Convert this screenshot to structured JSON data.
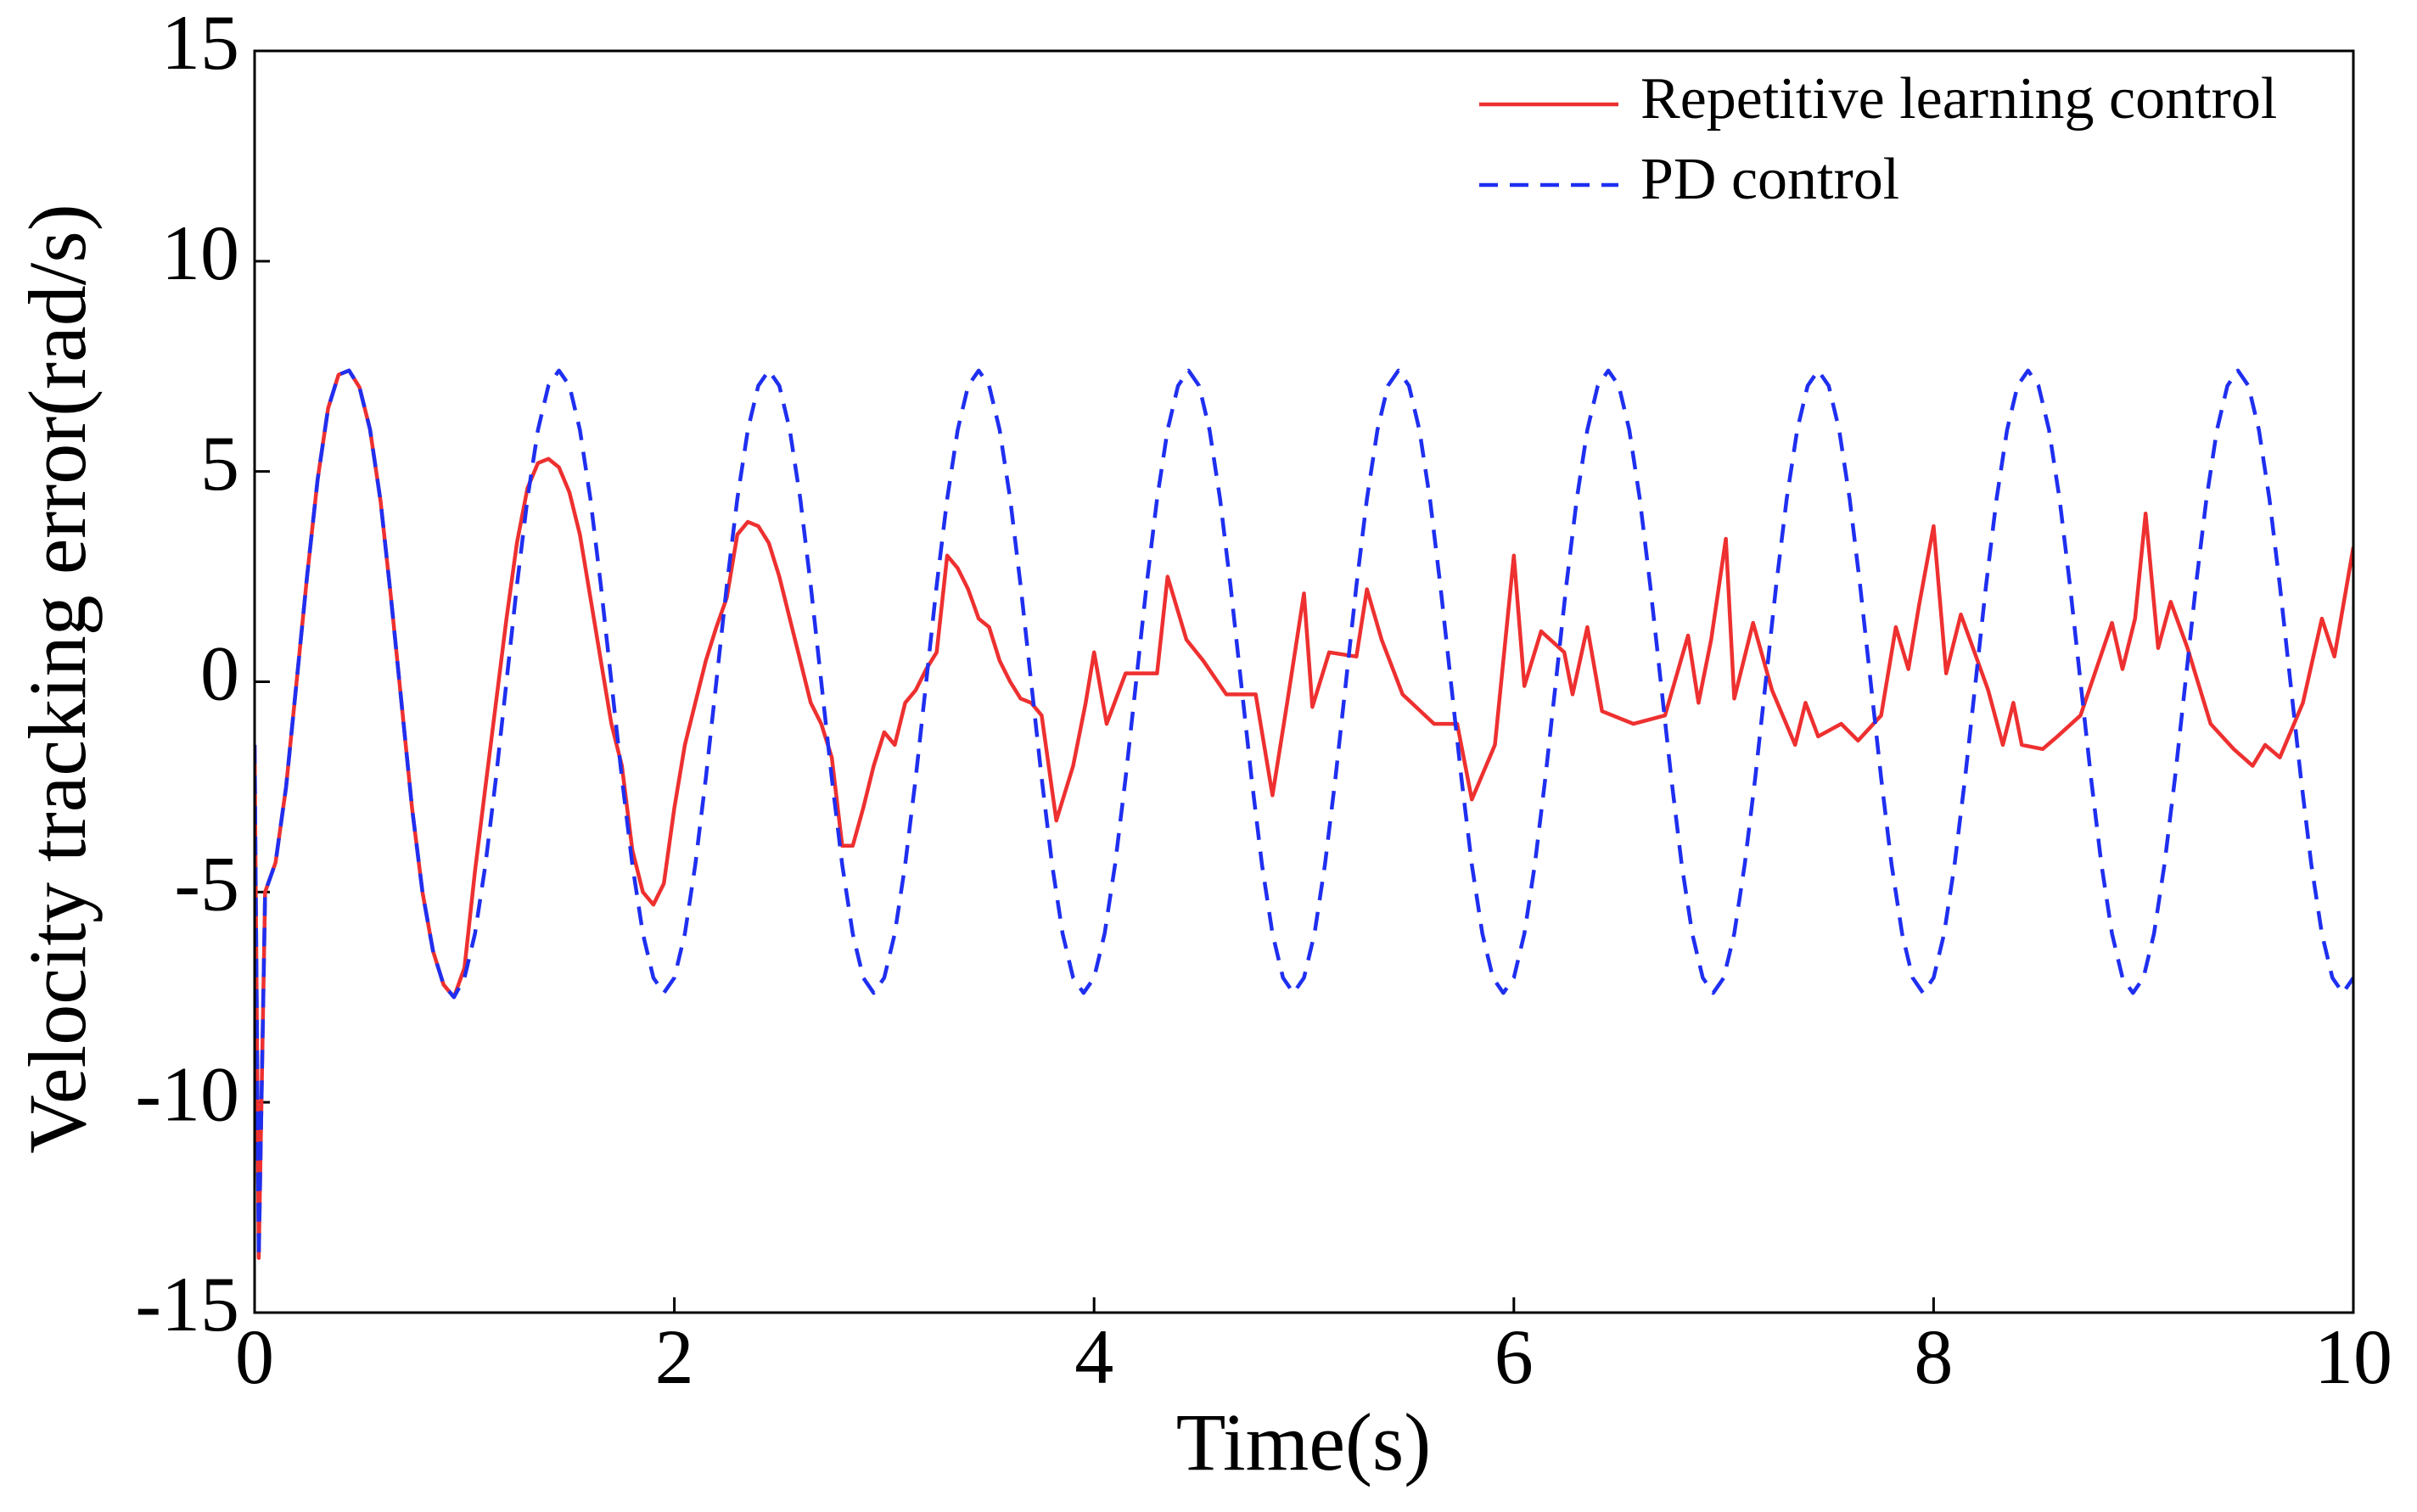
{
  "chart_data": {
    "type": "line",
    "xlabel": "Time(s)",
    "ylabel": "Velocity tracking error(rad/s)",
    "xlim": [
      0,
      10
    ],
    "xticks": [
      0,
      2,
      4,
      6,
      8,
      10
    ],
    "ylim": [
      -15,
      15
    ],
    "yticks": [
      -15,
      -10,
      -5,
      0,
      5,
      10,
      15
    ],
    "grid": false,
    "legend": "upper right",
    "series": [
      {
        "name": "Repetitive learning control",
        "color": "#ee3030",
        "dash": false,
        "x": [
          0,
          0.02,
          0.05,
          0.1,
          0.15,
          0.2,
          0.25,
          0.3,
          0.35,
          0.4,
          0.45,
          0.5,
          0.55,
          0.6,
          0.65,
          0.7,
          0.75,
          0.8,
          0.85,
          0.9,
          0.95,
          1.0,
          1.05,
          1.1,
          1.15,
          1.2,
          1.25,
          1.3,
          1.35,
          1.4,
          1.45,
          1.5,
          1.55,
          1.6,
          1.65,
          1.7,
          1.75,
          1.8,
          1.85,
          1.9,
          1.95,
          2.0,
          2.05,
          2.1,
          2.15,
          2.2,
          2.25,
          2.3,
          2.35,
          2.4,
          2.45,
          2.5,
          2.55,
          2.6,
          2.65,
          2.7,
          2.75,
          2.8,
          2.85,
          2.9,
          2.95,
          3.0,
          3.05,
          3.1,
          3.15,
          3.2,
          3.25,
          3.3,
          3.35,
          3.4,
          3.45,
          3.5,
          3.55,
          3.6,
          3.65,
          3.7,
          3.75,
          3.82,
          3.9,
          3.96,
          4.0,
          4.06,
          4.15,
          4.3,
          4.35,
          4.44,
          4.52,
          4.63,
          4.77,
          4.85,
          4.92,
          5.0,
          5.04,
          5.12,
          5.25,
          5.3,
          5.37,
          5.47,
          5.62,
          5.73,
          5.8,
          5.91,
          6.0,
          6.05,
          6.13,
          6.24,
          6.28,
          6.35,
          6.42,
          6.57,
          6.72,
          6.83,
          6.88,
          6.94,
          7.01,
          7.05,
          7.14,
          7.23,
          7.34,
          7.39,
          7.45,
          7.56,
          7.64,
          7.75,
          7.82,
          7.88,
          7.93,
          8.0,
          8.06,
          8.13,
          8.26,
          8.33,
          8.38,
          8.42,
          8.52,
          8.59,
          8.7,
          8.85,
          8.9,
          8.96,
          9.01,
          9.07,
          9.13,
          9.21,
          9.32,
          9.43,
          9.52,
          9.58,
          9.65,
          9.76,
          9.85,
          9.91,
          10.0
        ],
        "values": [
          -1.5,
          -13.7,
          -5,
          -4.3,
          -2.5,
          0,
          2.5,
          4.8,
          6.5,
          7.3,
          7.4,
          7.0,
          6.0,
          4.3,
          2.0,
          -0.5,
          -3.0,
          -5.0,
          -6.4,
          -7.2,
          -7.5,
          -6.8,
          -4.5,
          -2.5,
          -0.5,
          1.5,
          3.3,
          4.6,
          5.2,
          5.3,
          5.1,
          4.5,
          3.5,
          2.0,
          0.5,
          -1.0,
          -2.0,
          -4.0,
          -5.0,
          -5.3,
          -4.8,
          -3.0,
          -1.5,
          -0.5,
          0.5,
          1.3,
          2.0,
          3.5,
          3.8,
          3.7,
          3.3,
          2.5,
          1.5,
          0.5,
          -0.5,
          -1.0,
          -1.8,
          -3.9,
          -3.9,
          -3.0,
          -2.0,
          -1.2,
          -1.5,
          -0.5,
          -0.2,
          0.3,
          0.7,
          3.0,
          2.7,
          2.2,
          1.5,
          1.3,
          0.5,
          0.0,
          -0.4,
          -0.5,
          -0.8,
          -3.3,
          -2.0,
          -0.5,
          0.7,
          -1.0,
          0.2,
          0.2,
          2.5,
          1.0,
          0.5,
          -0.3,
          -0.3,
          -2.7,
          -0.5,
          2.1,
          -0.6,
          0.7,
          0.6,
          2.2,
          1.0,
          -0.3,
          -1.0,
          -1.0,
          -2.8,
          -1.5,
          3.0,
          -0.1,
          1.2,
          0.7,
          -0.3,
          1.3,
          -0.7,
          -1.0,
          -0.8,
          1.1,
          -0.5,
          1.0,
          3.4,
          -0.4,
          1.4,
          -0.2,
          -1.5,
          -0.5,
          -1.3,
          -1.0,
          -1.4,
          -0.8,
          1.3,
          0.3,
          1.8,
          3.7,
          0.2,
          1.6,
          -0.2,
          -1.5,
          -0.5,
          -1.5,
          -1.6,
          -1.3,
          -0.8,
          1.4,
          0.3,
          1.5,
          4.0,
          0.8,
          1.9,
          0.8,
          -1.0,
          -1.6,
          -2.0,
          -1.5,
          -1.8,
          -0.5,
          1.5,
          0.6,
          3.2
        ]
      },
      {
        "name": "PD control",
        "color": "#1f2ff0",
        "dash": true,
        "x": [
          0,
          0.02,
          0.05,
          0.1,
          0.15,
          0.2,
          0.25,
          0.3,
          0.35,
          0.4,
          0.45,
          0.5,
          0.55,
          0.6,
          0.65,
          0.7,
          0.75,
          0.8,
          0.85,
          0.9,
          0.95,
          1.0,
          1.05,
          1.1,
          1.15,
          1.2,
          1.25,
          1.3,
          1.35,
          1.4,
          1.45,
          1.5,
          1.55,
          1.6,
          1.65,
          1.7,
          1.75,
          1.8,
          1.85,
          1.9,
          1.95,
          2.0,
          2.05,
          2.1,
          2.15,
          2.2,
          2.25,
          2.3,
          2.35,
          2.4,
          2.45,
          2.5,
          2.55,
          2.6,
          2.65,
          2.7,
          2.75,
          2.8,
          2.85,
          2.9,
          2.95,
          3.0,
          3.05,
          3.1,
          3.15,
          3.2,
          3.25,
          3.3,
          3.35,
          3.4,
          3.45,
          3.5,
          3.55,
          3.6,
          3.65,
          3.7,
          3.75,
          3.8,
          3.85,
          3.9,
          3.95,
          4.0,
          4.05,
          4.1,
          4.15,
          4.2,
          4.25,
          4.3,
          4.35,
          4.4,
          4.45,
          4.5,
          4.55,
          4.6,
          4.65,
          4.7,
          4.75,
          4.8,
          4.85,
          4.9,
          4.95,
          5.0,
          5.05,
          5.1,
          5.15,
          5.2,
          5.25,
          5.3,
          5.35,
          5.4,
          5.45,
          5.5,
          5.55,
          5.6,
          5.65,
          5.7,
          5.75,
          5.8,
          5.85,
          5.9,
          5.95,
          6.0,
          6.05,
          6.1,
          6.15,
          6.2,
          6.25,
          6.3,
          6.35,
          6.4,
          6.45,
          6.5,
          6.55,
          6.6,
          6.65,
          6.7,
          6.75,
          6.8,
          6.85,
          6.9,
          6.95,
          7.0,
          7.05,
          7.1,
          7.15,
          7.2,
          7.25,
          7.3,
          7.35,
          7.4,
          7.45,
          7.5,
          7.55,
          7.6,
          7.65,
          7.7,
          7.75,
          7.8,
          7.85,
          7.9,
          7.95,
          8.0,
          8.05,
          8.1,
          8.15,
          8.2,
          8.25,
          8.3,
          8.35,
          8.4,
          8.45,
          8.5,
          8.55,
          8.6,
          8.65,
          8.7,
          8.75,
          8.8,
          8.85,
          8.9,
          8.95,
          9.0,
          9.05,
          9.1,
          9.15,
          9.2,
          9.25,
          9.3,
          9.35,
          9.4,
          9.45,
          9.5,
          9.55,
          9.6,
          9.65,
          9.7,
          9.75,
          9.8,
          9.85,
          9.9,
          9.95,
          10.0
        ],
        "values": [
          -1.5,
          -13.7,
          -5,
          -4.3,
          -2.5,
          0,
          2.5,
          4.8,
          6.5,
          7.3,
          7.4,
          7.0,
          6.0,
          4.3,
          2.0,
          -0.5,
          -3.0,
          -5.0,
          -6.4,
          -7.2,
          -7.5,
          -7.04,
          -5.99,
          -4.35,
          -2.29,
          0,
          2.29,
          4.35,
          5.99,
          7.04,
          7.4,
          7.04,
          5.99,
          4.35,
          2.29,
          0,
          -2.29,
          -4.35,
          -5.99,
          -7.04,
          -7.4,
          -7.04,
          -5.99,
          -4.35,
          -2.29,
          0,
          2.29,
          4.35,
          5.99,
          7.04,
          7.4,
          7.04,
          5.99,
          4.35,
          2.29,
          0,
          -2.29,
          -4.35,
          -5.99,
          -7.04,
          -7.4,
          -7.04,
          -5.99,
          -4.35,
          -2.29,
          0,
          2.29,
          4.35,
          5.99,
          7.04,
          7.4,
          7.04,
          5.99,
          4.35,
          2.29,
          0,
          -2.29,
          -4.35,
          -5.99,
          -7.04,
          -7.4,
          -7.04,
          -5.99,
          -4.35,
          -2.29,
          0,
          2.29,
          4.35,
          5.99,
          7.04,
          7.4,
          7.04,
          5.99,
          4.35,
          2.29,
          0,
          -2.29,
          -4.35,
          -5.99,
          -7.04,
          -7.4,
          -7.04,
          -5.99,
          -4.35,
          -2.29,
          0,
          2.29,
          4.35,
          5.99,
          7.04,
          7.4,
          7.04,
          5.99,
          4.35,
          2.29,
          0,
          -2.29,
          -4.35,
          -5.99,
          -7.04,
          -7.4,
          -7.04,
          -5.99,
          -4.35,
          -2.29,
          0,
          2.29,
          4.35,
          5.99,
          7.04,
          7.4,
          7.04,
          5.99,
          4.35,
          2.29,
          0,
          -2.29,
          -4.35,
          -5.99,
          -7.04,
          -7.4,
          -7.04,
          -5.99,
          -4.35,
          -2.29,
          0,
          2.29,
          4.35,
          5.99,
          7.04,
          7.4,
          7.04,
          5.99,
          4.35,
          2.29,
          0,
          -2.29,
          -4.35,
          -5.99,
          -7.04,
          -7.4,
          -7.04,
          -5.99,
          -4.35,
          -2.29,
          0,
          2.29,
          4.35,
          5.99,
          7.04,
          7.4,
          7.04,
          5.99,
          4.35,
          2.29,
          0,
          -2.29,
          -4.35,
          -5.99,
          -7.04,
          -7.4,
          -7.04,
          -5.99,
          -4.35,
          -2.29,
          0,
          2.29,
          4.35,
          5.99,
          7.04,
          7.4,
          7.04,
          5.99,
          4.35,
          2.29,
          0,
          -2.29,
          -4.35,
          -5.99,
          -7.04,
          -7.4,
          -7.04
        ]
      }
    ]
  }
}
